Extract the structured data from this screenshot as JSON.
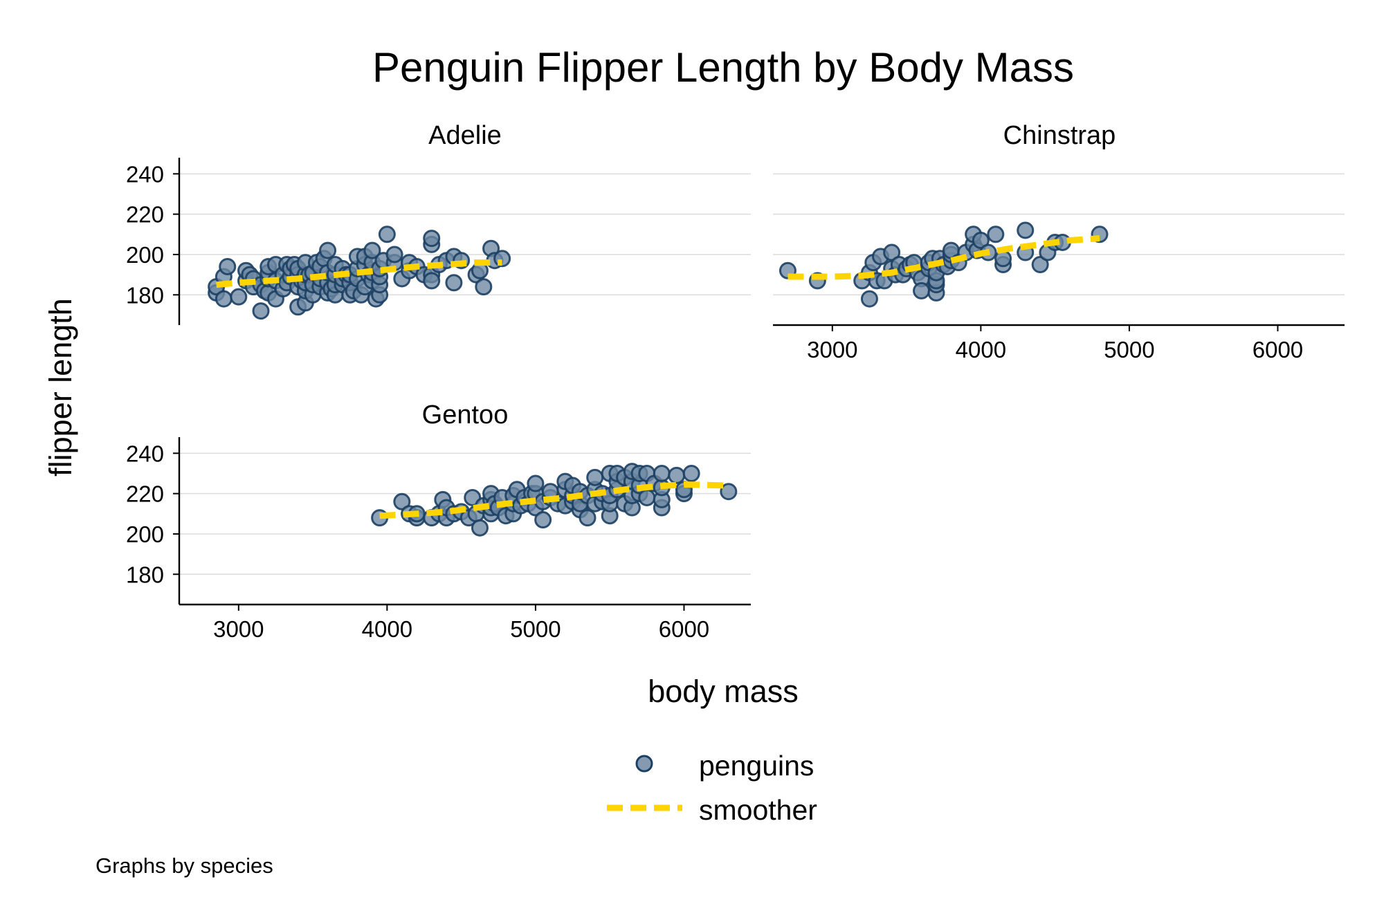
{
  "chart_data": {
    "type": "scatter",
    "title": "Penguin Flipper Length by Body Mass",
    "xlabel": "body mass",
    "ylabel": "flipper length",
    "note": "Graphs by species",
    "xlim": [
      2600,
      6450
    ],
    "ylim": [
      165,
      248
    ],
    "xticks": [
      3000,
      4000,
      5000,
      6000
    ],
    "yticks": [
      180,
      200,
      220,
      240
    ],
    "grid": true,
    "legend_placement": "bottom",
    "colors": {
      "marker_fill": "#6d88a3",
      "marker_stroke": "#1c3f63",
      "smoother": "#ffd400"
    },
    "legend": [
      {
        "label": "penguins",
        "kind": "marker"
      },
      {
        "label": "smoother",
        "kind": "dashed-line"
      }
    ],
    "panels": [
      {
        "name": "Adelie",
        "x_axis_labels": false,
        "points": [
          [
            2850,
            181
          ],
          [
            2850,
            184
          ],
          [
            2900,
            178
          ],
          [
            2900,
            189
          ],
          [
            2925,
            194
          ],
          [
            3000,
            179
          ],
          [
            3050,
            187
          ],
          [
            3050,
            192
          ],
          [
            3075,
            190
          ],
          [
            3100,
            188
          ],
          [
            3100,
            184
          ],
          [
            3150,
            172
          ],
          [
            3150,
            185
          ],
          [
            3175,
            182
          ],
          [
            3200,
            181
          ],
          [
            3200,
            188
          ],
          [
            3200,
            191
          ],
          [
            3200,
            194
          ],
          [
            3250,
            178
          ],
          [
            3250,
            187
          ],
          [
            3250,
            195
          ],
          [
            3300,
            183
          ],
          [
            3300,
            190
          ],
          [
            3325,
            186
          ],
          [
            3325,
            195
          ],
          [
            3350,
            189
          ],
          [
            3350,
            193
          ],
          [
            3375,
            195
          ],
          [
            3400,
            174
          ],
          [
            3400,
            184
          ],
          [
            3400,
            190
          ],
          [
            3400,
            193
          ],
          [
            3425,
            187
          ],
          [
            3450,
            176
          ],
          [
            3450,
            182
          ],
          [
            3450,
            186
          ],
          [
            3450,
            190
          ],
          [
            3450,
            196
          ],
          [
            3475,
            190
          ],
          [
            3500,
            180
          ],
          [
            3500,
            185
          ],
          [
            3500,
            191
          ],
          [
            3525,
            196
          ],
          [
            3550,
            184
          ],
          [
            3550,
            188
          ],
          [
            3550,
            194
          ],
          [
            3575,
            198
          ],
          [
            3600,
            181
          ],
          [
            3600,
            186
          ],
          [
            3600,
            191
          ],
          [
            3600,
            202
          ],
          [
            3625,
            183
          ],
          [
            3650,
            180
          ],
          [
            3650,
            185
          ],
          [
            3650,
            190
          ],
          [
            3650,
            195
          ],
          [
            3700,
            185
          ],
          [
            3700,
            188
          ],
          [
            3700,
            193
          ],
          [
            3725,
            190
          ],
          [
            3750,
            180
          ],
          [
            3750,
            186
          ],
          [
            3750,
            190
          ],
          [
            3775,
            182
          ],
          [
            3800,
            188
          ],
          [
            3800,
            193
          ],
          [
            3800,
            199
          ],
          [
            3825,
            180
          ],
          [
            3850,
            184
          ],
          [
            3850,
            195
          ],
          [
            3850,
            199
          ],
          [
            3875,
            190
          ],
          [
            3900,
            187
          ],
          [
            3900,
            191
          ],
          [
            3900,
            196
          ],
          [
            3900,
            202
          ],
          [
            3925,
            178
          ],
          [
            3950,
            180
          ],
          [
            3950,
            185
          ],
          [
            3950,
            189
          ],
          [
            3950,
            193
          ],
          [
            3975,
            197
          ],
          [
            4000,
            210
          ],
          [
            4050,
            196
          ],
          [
            4050,
            200
          ],
          [
            4100,
            188
          ],
          [
            4150,
            192
          ],
          [
            4150,
            196
          ],
          [
            4200,
            194
          ],
          [
            4250,
            190
          ],
          [
            4300,
            190
          ],
          [
            4300,
            205
          ],
          [
            4300,
            208
          ],
          [
            4300,
            187
          ],
          [
            4350,
            195
          ],
          [
            4400,
            197
          ],
          [
            4450,
            186
          ],
          [
            4450,
            199
          ],
          [
            4500,
            197
          ],
          [
            4600,
            190
          ],
          [
            4625,
            192
          ],
          [
            4650,
            184
          ],
          [
            4700,
            203
          ],
          [
            4725,
            197
          ],
          [
            4775,
            198
          ]
        ],
        "smoother": [
          [
            2850,
            185
          ],
          [
            3000,
            186
          ],
          [
            3200,
            187
          ],
          [
            3400,
            188
          ],
          [
            3600,
            189.5
          ],
          [
            3800,
            191
          ],
          [
            4000,
            192.5
          ],
          [
            4200,
            194
          ],
          [
            4400,
            195
          ],
          [
            4600,
            196
          ],
          [
            4775,
            196
          ]
        ]
      },
      {
        "name": "Chinstrap",
        "x_axis_labels": true,
        "points": [
          [
            2700,
            192
          ],
          [
            2900,
            187
          ],
          [
            3200,
            187
          ],
          [
            3250,
            178
          ],
          [
            3250,
            191
          ],
          [
            3275,
            196
          ],
          [
            3300,
            187
          ],
          [
            3325,
            199
          ],
          [
            3350,
            187
          ],
          [
            3400,
            193
          ],
          [
            3400,
            201
          ],
          [
            3425,
            190
          ],
          [
            3450,
            195
          ],
          [
            3475,
            190
          ],
          [
            3500,
            193
          ],
          [
            3525,
            195
          ],
          [
            3550,
            196
          ],
          [
            3575,
            191
          ],
          [
            3600,
            188
          ],
          [
            3600,
            182
          ],
          [
            3650,
            193
          ],
          [
            3650,
            196
          ],
          [
            3675,
            198
          ],
          [
            3700,
            181
          ],
          [
            3700,
            185
          ],
          [
            3700,
            187
          ],
          [
            3700,
            191
          ],
          [
            3725,
            198
          ],
          [
            3750,
            195
          ],
          [
            3775,
            194
          ],
          [
            3800,
            197
          ],
          [
            3800,
            200
          ],
          [
            3800,
            202
          ],
          [
            3850,
            196
          ],
          [
            3900,
            201
          ],
          [
            3950,
            205
          ],
          [
            3950,
            210
          ],
          [
            3975,
            202
          ],
          [
            4000,
            207
          ],
          [
            4050,
            201
          ],
          [
            4100,
            210
          ],
          [
            4150,
            195
          ],
          [
            4150,
            198
          ],
          [
            4300,
            201
          ],
          [
            4300,
            212
          ],
          [
            4400,
            195
          ],
          [
            4450,
            201
          ],
          [
            4500,
            206
          ],
          [
            4550,
            206
          ],
          [
            4800,
            210
          ]
        ],
        "smoother": [
          [
            2700,
            189
          ],
          [
            3000,
            189
          ],
          [
            3200,
            189.5
          ],
          [
            3400,
            191
          ],
          [
            3600,
            194
          ],
          [
            3800,
            197
          ],
          [
            4000,
            200.5
          ],
          [
            4200,
            203
          ],
          [
            4400,
            205
          ],
          [
            4600,
            207
          ],
          [
            4800,
            208
          ]
        ]
      },
      {
        "name": "Gentoo",
        "x_axis_labels": true,
        "points": [
          [
            3950,
            208
          ],
          [
            4100,
            216
          ],
          [
            4150,
            210
          ],
          [
            4200,
            208
          ],
          [
            4200,
            210
          ],
          [
            4300,
            208
          ],
          [
            4350,
            210
          ],
          [
            4375,
            217
          ],
          [
            4400,
            208
          ],
          [
            4400,
            213
          ],
          [
            4450,
            210
          ],
          [
            4500,
            211
          ],
          [
            4550,
            208
          ],
          [
            4575,
            218
          ],
          [
            4600,
            210
          ],
          [
            4625,
            203
          ],
          [
            4650,
            214
          ],
          [
            4700,
            210
          ],
          [
            4700,
            213
          ],
          [
            4700,
            217
          ],
          [
            4700,
            220
          ],
          [
            4725,
            215
          ],
          [
            4750,
            213
          ],
          [
            4775,
            218
          ],
          [
            4800,
            209
          ],
          [
            4850,
            210
          ],
          [
            4850,
            215
          ],
          [
            4850,
            219
          ],
          [
            4875,
            222
          ],
          [
            4900,
            214
          ],
          [
            4925,
            218
          ],
          [
            4950,
            215
          ],
          [
            4975,
            220
          ],
          [
            5000,
            213
          ],
          [
            5000,
            220
          ],
          [
            5000,
            225
          ],
          [
            5050,
            207
          ],
          [
            5050,
            216
          ],
          [
            5100,
            218
          ],
          [
            5100,
            221
          ],
          [
            5150,
            215
          ],
          [
            5200,
            214
          ],
          [
            5200,
            222
          ],
          [
            5200,
            226
          ],
          [
            5250,
            216
          ],
          [
            5250,
            219
          ],
          [
            5250,
            224
          ],
          [
            5300,
            212
          ],
          [
            5300,
            215
          ],
          [
            5300,
            221
          ],
          [
            5350,
            208
          ],
          [
            5350,
            219
          ],
          [
            5400,
            215
          ],
          [
            5400,
            222
          ],
          [
            5400,
            228
          ],
          [
            5450,
            216
          ],
          [
            5450,
            220
          ],
          [
            5500,
            209
          ],
          [
            5500,
            215
          ],
          [
            5500,
            219
          ],
          [
            5500,
            230
          ],
          [
            5550,
            222
          ],
          [
            5550,
            226
          ],
          [
            5550,
            230
          ],
          [
            5600,
            215
          ],
          [
            5600,
            228
          ],
          [
            5650,
            213
          ],
          [
            5650,
            219
          ],
          [
            5650,
            226
          ],
          [
            5650,
            231
          ],
          [
            5700,
            220
          ],
          [
            5700,
            224
          ],
          [
            5700,
            230
          ],
          [
            5750,
            218
          ],
          [
            5750,
            230
          ],
          [
            5800,
            225
          ],
          [
            5850,
            213
          ],
          [
            5850,
            217
          ],
          [
            5850,
            223
          ],
          [
            5850,
            230
          ],
          [
            5950,
            229
          ],
          [
            6000,
            220
          ],
          [
            6000,
            222
          ],
          [
            6050,
            230
          ],
          [
            6300,
            221
          ]
        ],
        "smoother": [
          [
            3950,
            209
          ],
          [
            4200,
            210
          ],
          [
            4400,
            211
          ],
          [
            4600,
            213
          ],
          [
            4800,
            215
          ],
          [
            5000,
            216.5
          ],
          [
            5200,
            218
          ],
          [
            5400,
            220
          ],
          [
            5600,
            222
          ],
          [
            5800,
            223.5
          ],
          [
            6000,
            224.5
          ],
          [
            6300,
            224
          ]
        ]
      }
    ]
  }
}
